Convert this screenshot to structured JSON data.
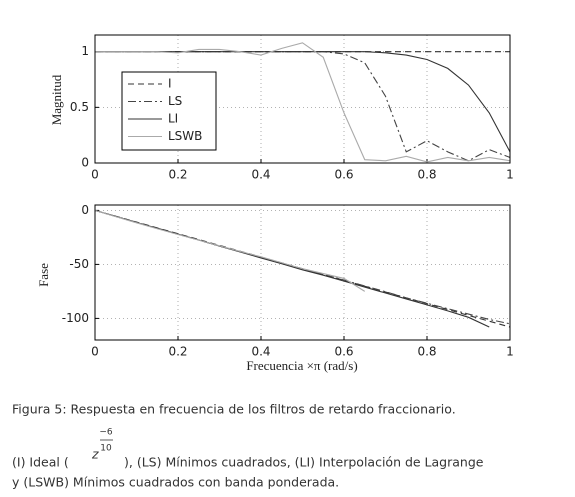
{
  "chart_data": [
    {
      "type": "line",
      "ylabel": "Magnitud",
      "x": [
        0,
        0.05,
        0.1,
        0.15,
        0.2,
        0.25,
        0.3,
        0.35,
        0.4,
        0.45,
        0.5,
        0.55,
        0.6,
        0.65,
        0.7,
        0.75,
        0.8,
        0.85,
        0.9,
        0.95,
        1
      ],
      "series": [
        {
          "name": "I",
          "color": "#333333",
          "dash": "dashed",
          "values": [
            1,
            1,
            1,
            1,
            1,
            1,
            1,
            1,
            1,
            1,
            1,
            1,
            1,
            1,
            1,
            1,
            1,
            1,
            1,
            1,
            1
          ]
        },
        {
          "name": "LS",
          "color": "#444444",
          "dash": "dashdot",
          "values": [
            1,
            1,
            1,
            1,
            1,
            1,
            1,
            1,
            1,
            1,
            1,
            1,
            0.98,
            0.9,
            0.6,
            0.1,
            0.2,
            0.1,
            0.02,
            0.12,
            0.05
          ]
        },
        {
          "name": "LI",
          "color": "#333333",
          "dash": "solid",
          "values": [
            1,
            1,
            1,
            1,
            1,
            1,
            1,
            1,
            1,
            1,
            1,
            1,
            1,
            1,
            0.99,
            0.97,
            0.93,
            0.85,
            0.7,
            0.45,
            0.1
          ]
        },
        {
          "name": "LSWB",
          "color": "#aaaaaa",
          "dash": "solid",
          "values": [
            1,
            1,
            1,
            1,
            0.99,
            1.02,
            1.02,
            1,
            0.97,
            1.03,
            1.08,
            0.95,
            0.45,
            0.03,
            0.02,
            0.06,
            0.01,
            0.05,
            0.02,
            0.05,
            0.02
          ]
        }
      ],
      "xlim": [
        0,
        1
      ],
      "xticks": [
        0,
        0.2,
        0.4,
        0.6,
        0.8,
        1
      ],
      "ylim": [
        0,
        1.15
      ],
      "yticks": [
        0,
        0.5,
        1
      ],
      "grid": true,
      "legend": "upper left"
    },
    {
      "type": "line",
      "ylabel": "Fase",
      "xlabel": "Frecuencia ×π (rad/s)",
      "x": [
        0,
        0.05,
        0.1,
        0.15,
        0.2,
        0.25,
        0.3,
        0.35,
        0.4,
        0.45,
        0.5,
        0.55,
        0.6,
        0.65,
        0.7,
        0.75,
        0.8,
        0.85,
        0.9,
        0.95,
        1
      ],
      "series": [
        {
          "color": "#333333",
          "dash": "dashed",
          "values": [
            0,
            -5.4,
            -10.8,
            -16.2,
            -21.6,
            -27,
            -32.4,
            -37.8,
            -43.2,
            -48.6,
            -54,
            -59.4,
            -64.8,
            -70.2,
            -75.6,
            -81,
            -86.4,
            -91.8,
            -97.2,
            -102.6,
            -108
          ]
        },
        {
          "color": "#444444",
          "dash": "dashdot",
          "values": [
            0,
            -5.5,
            -11,
            -16.5,
            -22,
            -27.5,
            -33,
            -38.3,
            -43.5,
            -48.8,
            -54,
            -59.3,
            -64.5,
            -70,
            -75.3,
            -81,
            -86,
            -91,
            -96,
            -101,
            -105
          ]
        },
        {
          "color": "#333333",
          "dash": "solid",
          "values": [
            0,
            -5.6,
            -11.2,
            -16.6,
            -22,
            -27.4,
            -33,
            -38.5,
            -44,
            -49.4,
            -55,
            -60,
            -65.5,
            -71,
            -76.5,
            -82,
            -87.5,
            -93,
            -99,
            -108,
            null
          ]
        },
        {
          "color": "#aaaaaa",
          "dash": "solid",
          "values": [
            0,
            -5.8,
            -11.5,
            -17,
            -22.3,
            -27.5,
            -32.8,
            -38,
            -43,
            -48.5,
            -54,
            -58.5,
            -63,
            -75,
            null,
            null,
            null,
            null,
            null,
            null,
            null
          ]
        }
      ],
      "xlim": [
        0,
        1
      ],
      "xticks": [
        0,
        0.2,
        0.4,
        0.6,
        0.8,
        1
      ],
      "ylim": [
        -120,
        5
      ],
      "yticks": [
        -100,
        -50,
        0
      ],
      "grid": true
    }
  ],
  "caption": {
    "title": "Figura 5: Respuesta en frecuencia de los filtros de retardo fraccionario.",
    "before": "(I) Ideal (",
    "base": "z",
    "exp_num": "−6",
    "exp_den": "10",
    "after": "), (LS) Mínimos cuadrados, (LI) Interpolación de Lagrange",
    "line2": "y (LSWB) Mínimos cuadrados con banda ponderada."
  }
}
